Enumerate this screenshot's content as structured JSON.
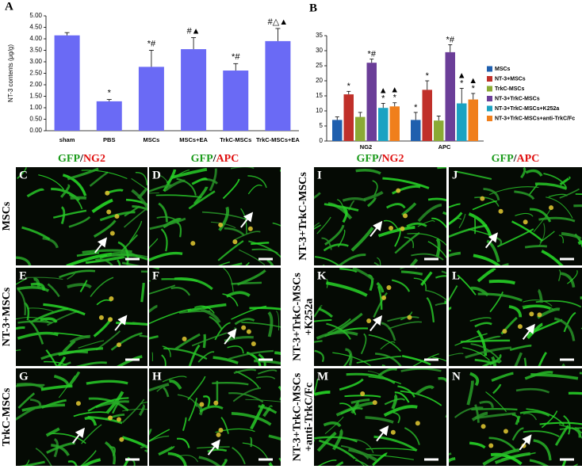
{
  "chart_data": [
    {
      "type": "bar",
      "panel": "A",
      "ylabel": "NT-3 contents (μg/g)",
      "categories": [
        "sham",
        "PBS",
        "MSCs",
        "MSCs+EA",
        "TrkC-MSCs",
        "TrkC-MSCs+EA"
      ],
      "values": [
        4.15,
        1.28,
        2.78,
        3.55,
        2.62,
        3.9
      ],
      "errors": [
        0.12,
        0.08,
        0.72,
        0.5,
        0.3,
        0.55
      ],
      "annotations": [
        null,
        "*",
        "*#",
        "#▲",
        "*#",
        "#△▲"
      ],
      "color": "#6a6af5",
      "ylim": [
        0,
        5
      ],
      "yticks": [
        {
          "value": 0,
          "label": "0.00"
        },
        {
          "value": 0.5,
          "label": "0.50"
        },
        {
          "value": 1,
          "label": "1.00"
        },
        {
          "value": 1.5,
          "label": "1.50"
        },
        {
          "value": 2,
          "label": "2.00"
        },
        {
          "value": 2.5,
          "label": "2.50"
        },
        {
          "value": 3,
          "label": "3.00"
        },
        {
          "value": 3.5,
          "label": "3.50"
        },
        {
          "value": 4,
          "label": "4.00"
        },
        {
          "value": 4.5,
          "label": "4.50"
        },
        {
          "value": 5,
          "label": "5.00"
        }
      ]
    },
    {
      "type": "grouped_bar",
      "panel": "B",
      "legend": "right",
      "categories": [
        "NG2",
        "APC"
      ],
      "series": [
        {
          "name": "MSCs",
          "color": "#1f5fae",
          "values": [
            7,
            7
          ],
          "errors": [
            1,
            2.5
          ],
          "annotations": [
            [],
            [
              "*"
            ]
          ]
        },
        {
          "name": "NT-3+MSCs",
          "color": "#c0302a",
          "values": [
            15.5,
            17
          ],
          "errors": [
            1,
            3
          ],
          "annotations": [
            [
              "*"
            ],
            [
              "*"
            ]
          ]
        },
        {
          "name": "TrkC-MSCs",
          "color": "#8aaa34",
          "values": [
            8,
            6.8
          ],
          "errors": [
            1.5,
            1.5
          ],
          "annotations": [
            [],
            []
          ]
        },
        {
          "name": "NT-3+TrkC-MSCs",
          "color": "#6b3e98",
          "values": [
            26,
            29.5
          ],
          "errors": [
            1.2,
            2.5
          ],
          "annotations": [
            [
              "*#"
            ],
            [
              "*#"
            ]
          ]
        },
        {
          "name": "NT-3+TrkC-MSCs+K252a",
          "color": "#1ba2c2",
          "values": [
            11,
            12.5
          ],
          "errors": [
            1.5,
            5
          ],
          "annotations": [
            [
              "▲",
              "*"
            ],
            [
              "▲",
              "*"
            ]
          ]
        },
        {
          "name": "NT-3+TrkC-MSCs+anti-TrkC/Fc",
          "color": "#f07f1c",
          "values": [
            11.5,
            13.8
          ],
          "errors": [
            1.2,
            2
          ],
          "annotations": [
            [
              "▲",
              "*"
            ],
            [
              "▲",
              "*"
            ]
          ]
        }
      ],
      "ylim": [
        0,
        35
      ],
      "yticks": [
        0,
        5,
        10,
        15,
        20,
        25,
        30,
        35
      ]
    }
  ],
  "micrographs": {
    "columns": [
      {
        "marker": "GFP",
        "sep": "/",
        "target": "NG2"
      },
      {
        "marker": "GFP",
        "sep": "/",
        "target": "APC"
      },
      {
        "marker": "GFP",
        "sep": "/",
        "target": "NG2"
      },
      {
        "marker": "GFP",
        "sep": "/",
        "target": "APC"
      }
    ],
    "rows": [
      [
        "MSCs"
      ],
      [
        "NT-3+MSCs"
      ],
      [
        "TrkC-MSCs"
      ],
      [
        "NT-3+TrkC-MSCs"
      ],
      [
        "NT-3+TrkC-MSCs",
        "+K252a"
      ],
      [
        "NT-3+TrkC-MSCs",
        "+anti-TrkC/Fc"
      ]
    ],
    "panels": [
      "C",
      "D",
      "E",
      "F",
      "G",
      "H",
      "I",
      "J",
      "K",
      "L",
      "M",
      "N"
    ]
  }
}
